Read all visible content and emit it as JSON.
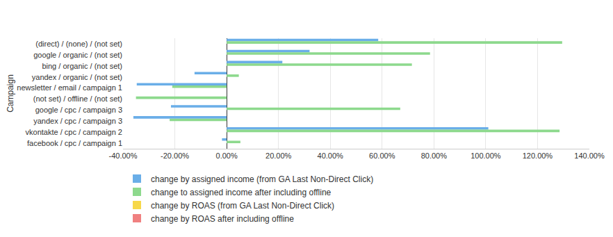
{
  "chart_data": {
    "type": "bar",
    "orientation": "horizontal",
    "y_label": "Campaign",
    "categories": [
      "(direct) / (none) / (not set)",
      "google / organic / (not set)",
      "bing / organic / (not set)",
      "yandex / organic / (not set)",
      "newsletter / email / campaign 1",
      "(not set) / offline / (not set)",
      "google / cpc / campaign 3",
      "yandex / cpc / campaign 3",
      "vkontakte / cpc / campaign 2",
      "facebook / cpc / campaign 1"
    ],
    "series": [
      {
        "name": "change by assigned income (from GA Last Non-Direct Click)",
        "color": "#6aaee8",
        "values": [
          58.5,
          32,
          21.5,
          -12.4,
          -34.7,
          null,
          -21.5,
          -36,
          101,
          -1.8
        ]
      },
      {
        "name": "change to assigned income after including offline",
        "color": "#8dd98d",
        "values": [
          129.5,
          78.5,
          71.5,
          4.7,
          -21,
          -35,
          67,
          -22,
          128.5,
          5.3
        ]
      },
      {
        "name": "change by ROAS (from GA Last Non-Direct Click)",
        "color": "#f7d84a",
        "values": [
          null,
          null,
          null,
          null,
          null,
          null,
          null,
          null,
          null,
          null
        ]
      },
      {
        "name": "change by ROAS after including offline",
        "color": "#f08080",
        "values": [
          null,
          null,
          null,
          null,
          null,
          null,
          null,
          null,
          null,
          null
        ]
      }
    ],
    "xlim": [
      -40,
      140
    ],
    "xticks": [
      {
        "value": -40,
        "label": "-40.00%"
      },
      {
        "value": -20,
        "label": "-20.00%"
      },
      {
        "value": 0,
        "label": "0.00%"
      },
      {
        "value": 20,
        "label": "20.00%"
      },
      {
        "value": 40,
        "label": "40.00%"
      },
      {
        "value": 60,
        "label": "60.00%"
      },
      {
        "value": 80,
        "label": "80.00%"
      },
      {
        "value": 100,
        "label": "100.00%"
      },
      {
        "value": 120,
        "label": "120.00%"
      },
      {
        "value": 140,
        "label": "140.00%"
      }
    ],
    "grid": true,
    "legend": "bottom"
  }
}
